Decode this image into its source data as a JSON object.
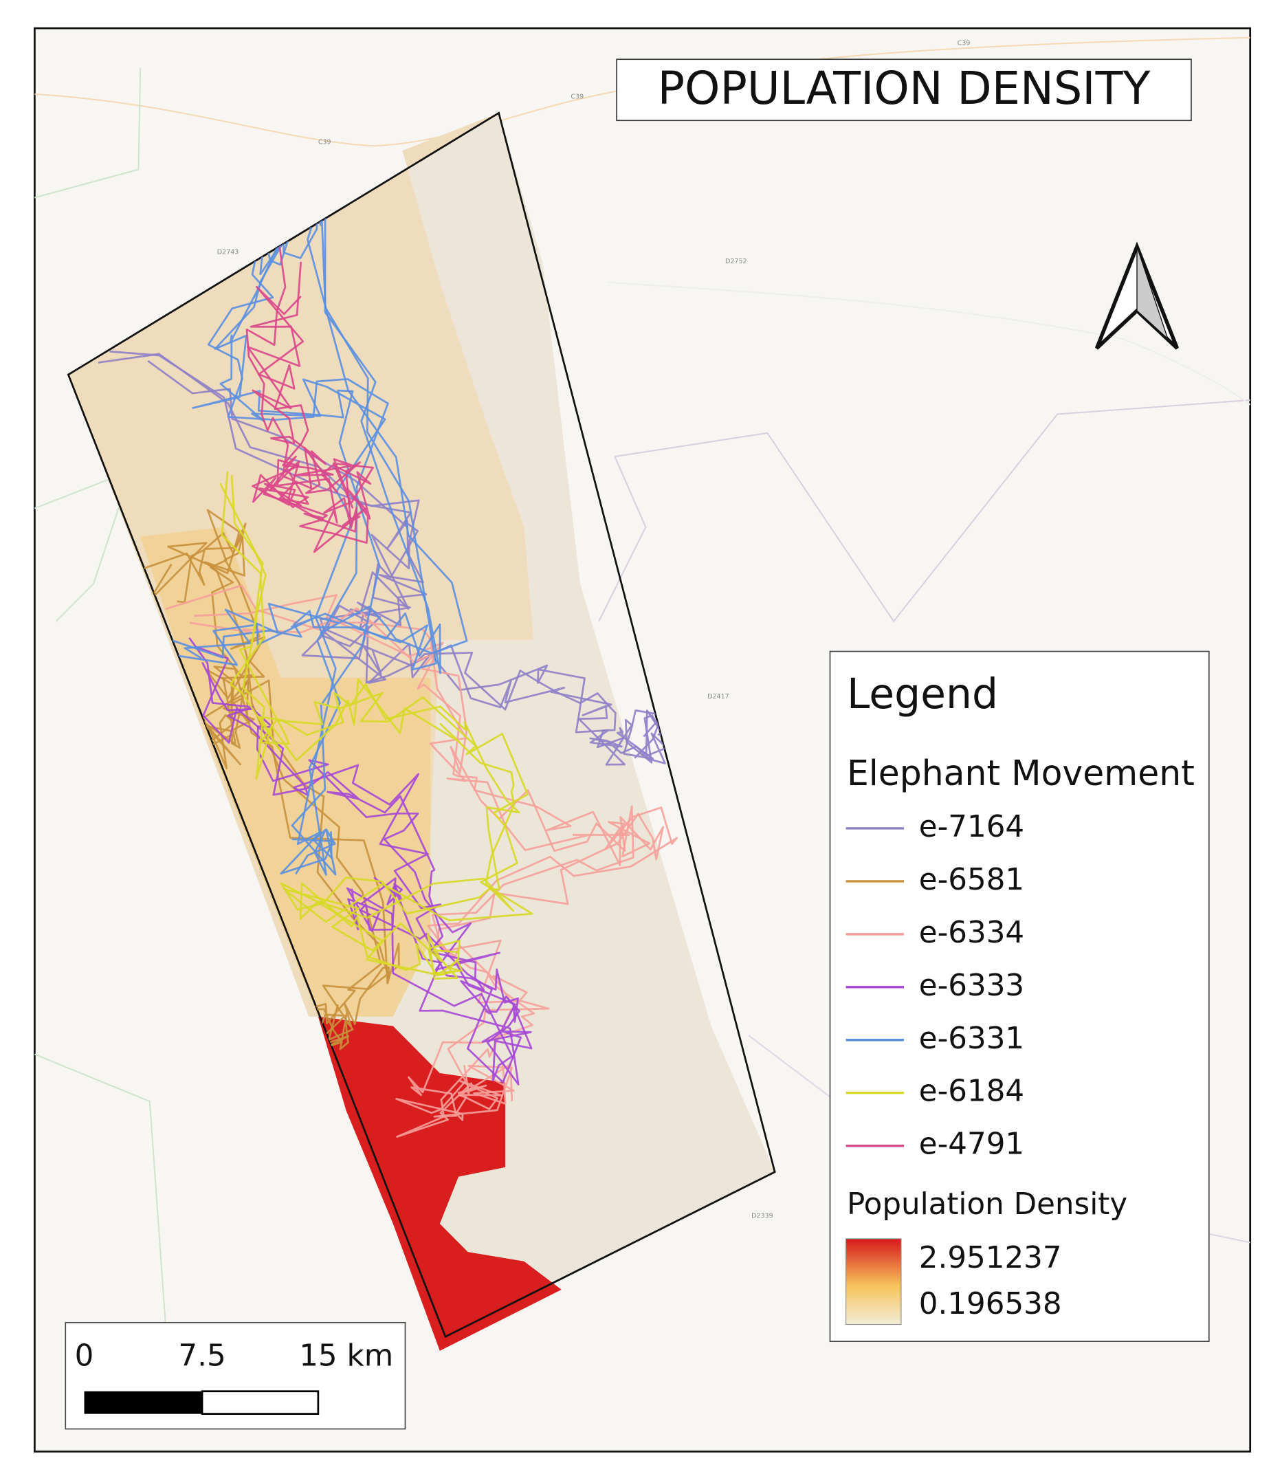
{
  "title": "POPULATION DENSITY",
  "road_labels": [
    "C39",
    "C39",
    "C39",
    "D2743",
    "D2752",
    "D2417",
    "D2339"
  ],
  "legend": {
    "title": "Legend",
    "movement_title": "Elephant Movement",
    "series": [
      {
        "name": "e-7164",
        "color": "#8e7fc6"
      },
      {
        "name": "e-6581",
        "color": "#c8913c"
      },
      {
        "name": "e-6334",
        "color": "#f5a09a"
      },
      {
        "name": "e-6333",
        "color": "#a547d6"
      },
      {
        "name": "e-6331",
        "color": "#5a8fe0"
      },
      {
        "name": "e-6184",
        "color": "#d6d925"
      },
      {
        "name": "e-4791",
        "color": "#d9468a"
      }
    ],
    "density_title": "Population Density",
    "density_max": 2.951237,
    "density_min": 0.196538
  },
  "scale_bar": {
    "labels": [
      "0",
      "7.5",
      "15 km"
    ]
  }
}
